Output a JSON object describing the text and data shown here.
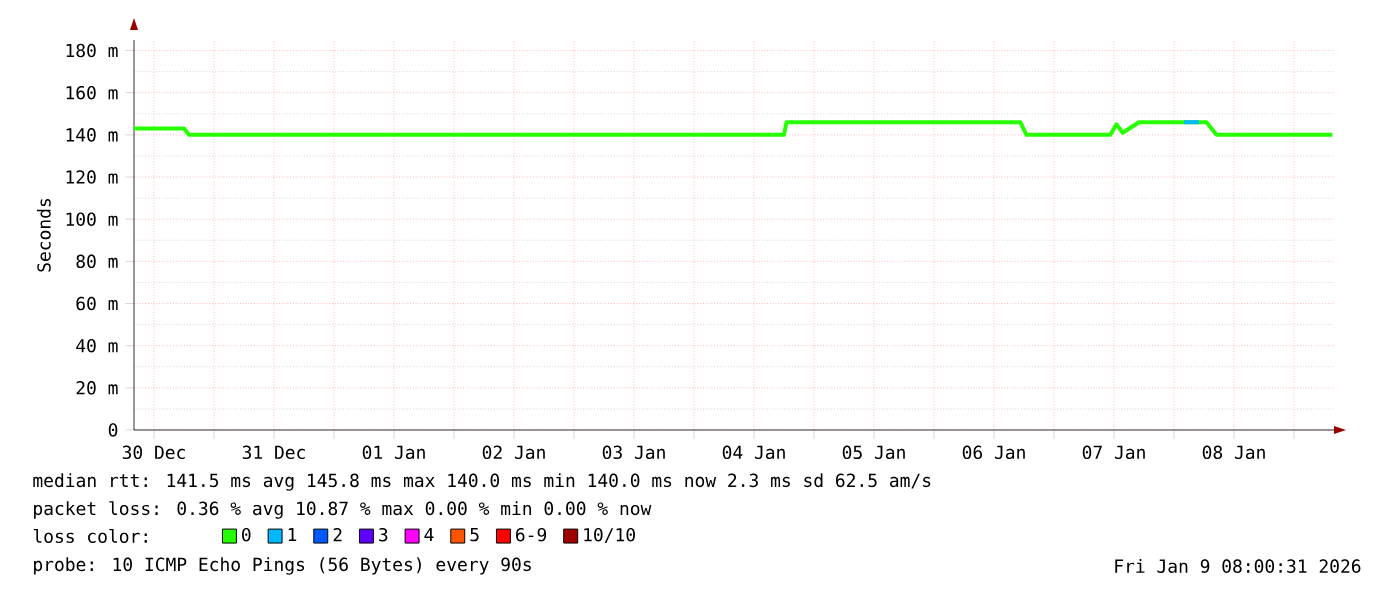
{
  "chart_data": {
    "type": "line",
    "ylabel": "Seconds",
    "xlim": [
      "2025-12-30T08:00",
      "2026-01-09T08:00"
    ],
    "xticks": [
      {
        "value": "2025-12-30T12:00",
        "label": "30 Dec"
      },
      {
        "value": "2025-12-31T12:00",
        "label": "31 Dec"
      },
      {
        "value": "2026-01-01T12:00",
        "label": "01 Jan"
      },
      {
        "value": "2026-01-02T12:00",
        "label": "02 Jan"
      },
      {
        "value": "2026-01-03T12:00",
        "label": "03 Jan"
      },
      {
        "value": "2026-01-04T12:00",
        "label": "04 Jan"
      },
      {
        "value": "2026-01-05T12:00",
        "label": "05 Jan"
      },
      {
        "value": "2026-01-06T12:00",
        "label": "06 Jan"
      },
      {
        "value": "2026-01-07T12:00",
        "label": "07 Jan"
      },
      {
        "value": "2026-01-08T12:00",
        "label": "08 Jan"
      },
      {
        "value": "2025-12-31T00:00",
        "label": null
      },
      {
        "value": "2026-01-01T00:00",
        "label": null
      },
      {
        "value": "2026-01-02T00:00",
        "label": null
      },
      {
        "value": "2026-01-03T00:00",
        "label": null
      },
      {
        "value": "2026-01-04T00:00",
        "label": null
      },
      {
        "value": "2026-01-05T00:00",
        "label": null
      },
      {
        "value": "2026-01-06T00:00",
        "label": null
      },
      {
        "value": "2026-01-07T00:00",
        "label": null
      },
      {
        "value": "2026-01-08T00:00",
        "label": null
      },
      {
        "value": "2026-01-09T00:00",
        "label": null
      }
    ],
    "ylim": [
      0,
      185
    ],
    "yticks": [
      0,
      {
        "value": 20,
        "label": "20 m"
      },
      {
        "value": 40,
        "label": "40 m"
      },
      {
        "value": 60,
        "label": "60 m"
      },
      {
        "value": 80,
        "label": "80 m"
      },
      {
        "value": 100,
        "label": "100 m"
      },
      {
        "value": 120,
        "label": "120 m"
      },
      {
        "value": 140,
        "label": "140 m"
      },
      {
        "value": 160,
        "label": "160 m"
      },
      {
        "value": 180,
        "label": "180 m"
      }
    ],
    "grid": true,
    "legend": "bottom",
    "legend_title": "loss color:",
    "marker": "none",
    "line_style": "solid",
    "series": [
      {
        "name": "0",
        "color": "#26ff00",
        "x": [
          "2025-12-30T08:00",
          "2025-12-30T18:00",
          "2025-12-30T19:00",
          "2026-01-04T18:00",
          "2026-01-04T18:30",
          "2026-01-06T17:15",
          "2026-01-06T18:30",
          "2026-01-07T11:15",
          "2026-01-07T12:30",
          "2026-01-07T13:45",
          "2026-01-07T17:00",
          "2026-01-08T06:30",
          "2026-01-08T08:30",
          "2026-01-09T07:40"
        ],
        "values": [
          143,
          143,
          140,
          140,
          146,
          146,
          140,
          140,
          145,
          141,
          146,
          146,
          140,
          140
        ]
      },
      {
        "name": "1",
        "color": "#00b8ff",
        "x": [
          "2026-01-08T02:00",
          "2026-01-08T05:00"
        ],
        "values": [
          146,
          146
        ]
      },
      {
        "name": "2",
        "color": "#0059ff"
      },
      {
        "name": "3",
        "color": "#5e00ff"
      },
      {
        "name": "4",
        "color": "#ff00ff"
      },
      {
        "name": "5",
        "color": "#ff5500"
      },
      {
        "name": "6-9",
        "color": "#ff0000"
      },
      {
        "name": "10/10",
        "color": "#a10000"
      }
    ],
    "annotations": [
      "median rtt: 141.5 ms avg 145.8 ms max 140.0 ms min 140.0 ms now 2.3 ms sd 62.5 am/s",
      "packet loss: 0.36 % avg 10.87 % max 0.00 % min 0.00 % now",
      "probe: 10 ICMP Echo Pings (56 Bytes) every 90s",
      "Fri Jan 9 08:00:31 2026"
    ]
  }
}
